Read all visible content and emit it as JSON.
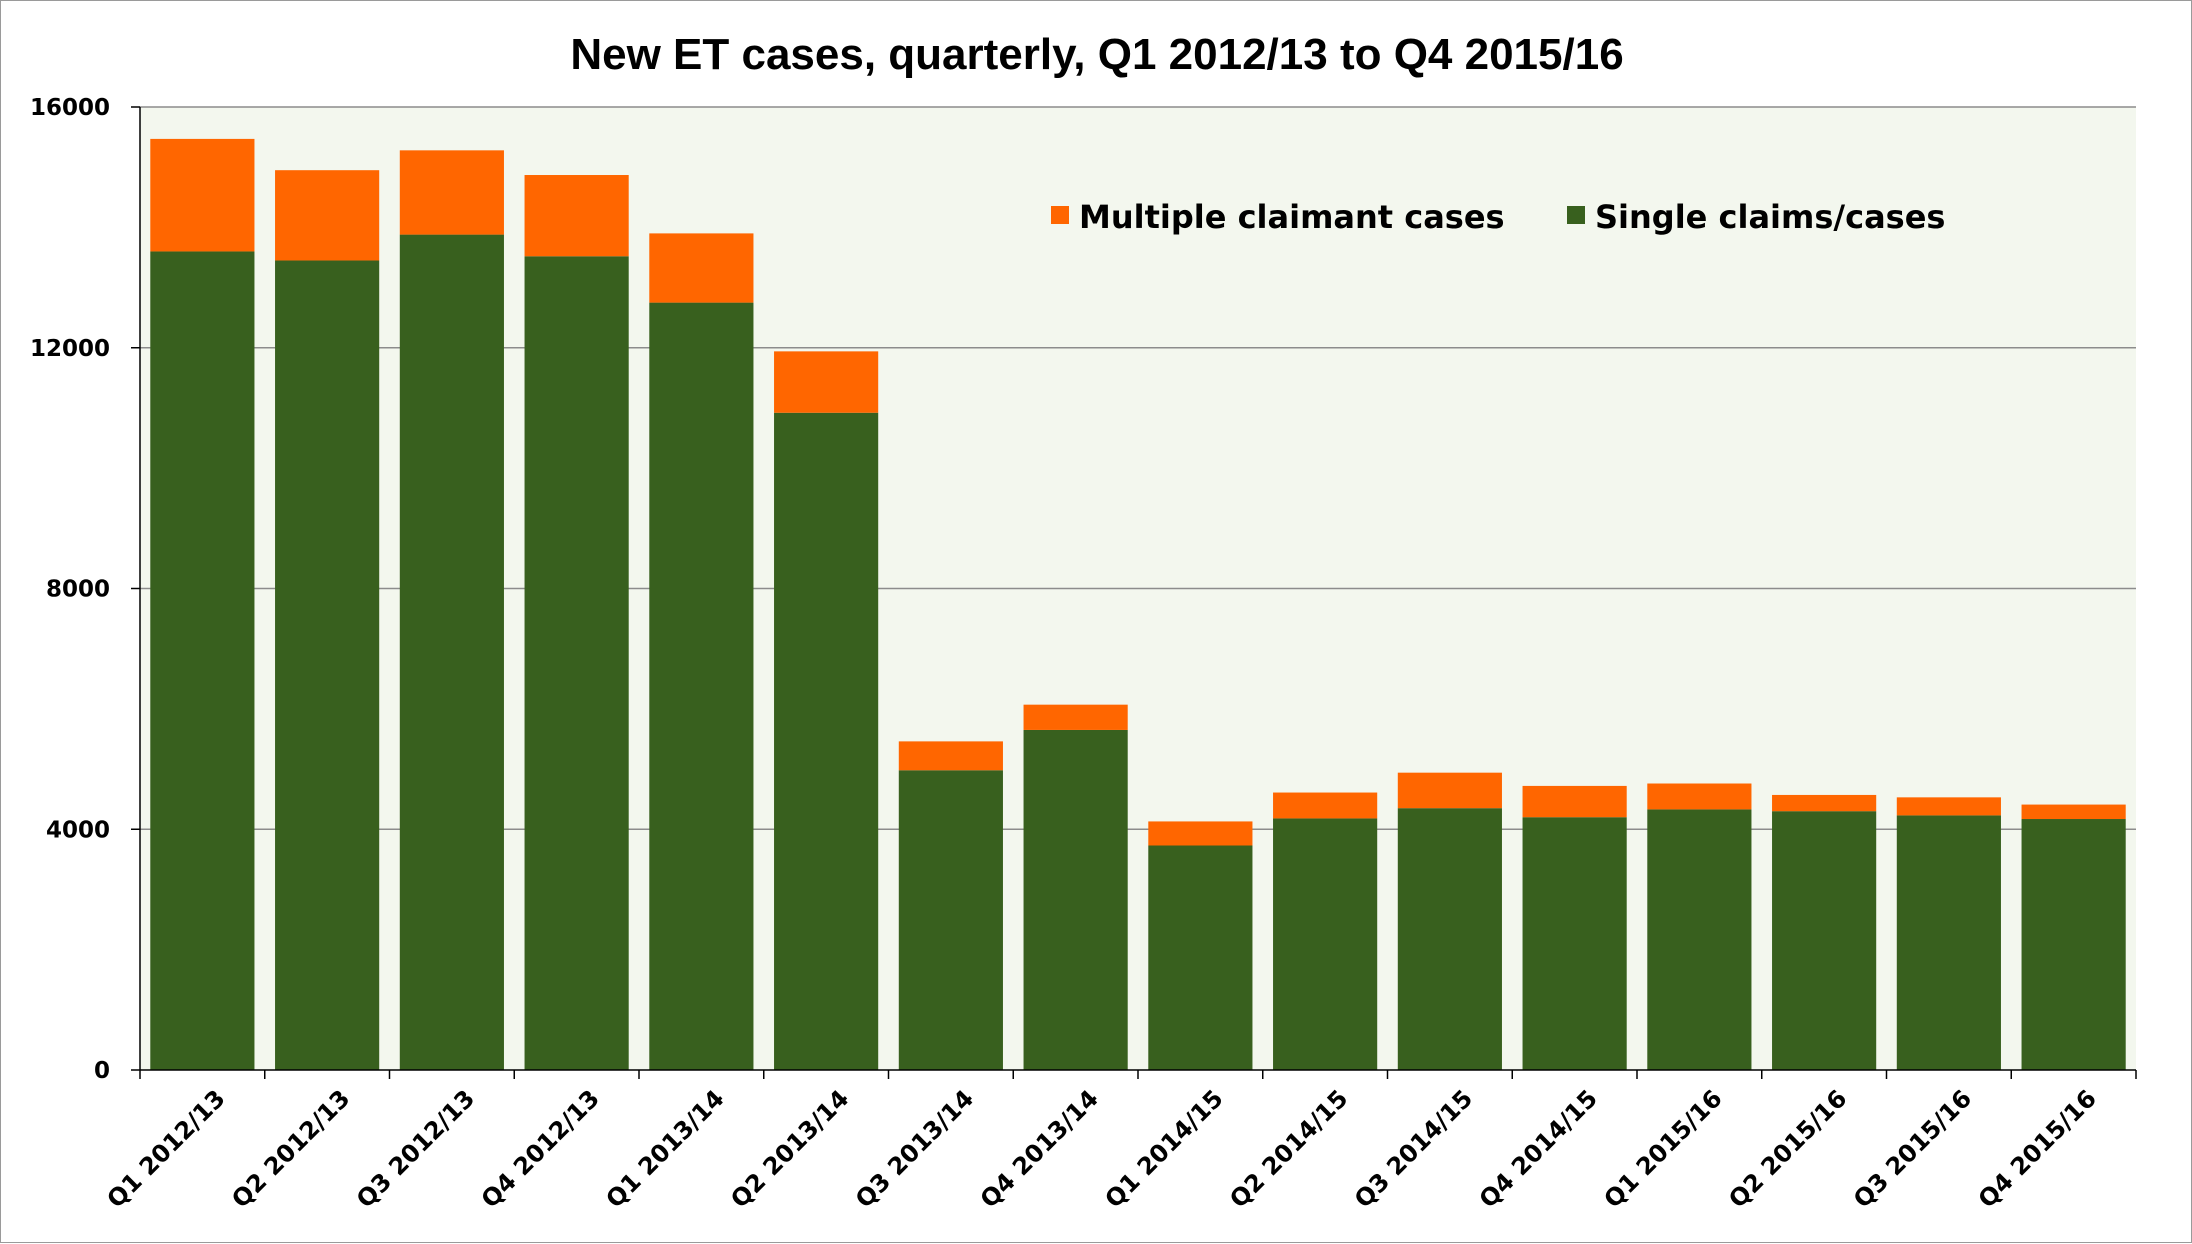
{
  "chart_data": {
    "type": "bar",
    "stacked": true,
    "title": "New ET cases, quarterly, Q1 2012/13 to Q4 2015/16",
    "xlabel": "",
    "ylabel": "",
    "ylim": [
      0,
      16000
    ],
    "yticks": [
      0,
      4000,
      8000,
      12000,
      16000
    ],
    "ytick_labels": [
      "0",
      "4000",
      "8000",
      "12000",
      "16000"
    ],
    "grid": true,
    "plot_background": "#f3f7ee",
    "legend_position": "top-right",
    "categories": [
      "Q1 2012/13",
      "Q2 2012/13",
      "Q3 2012/13",
      "Q4 2012/13",
      "Q1 2013/14",
      "Q2 2013/14",
      "Q3 2013/14",
      "Q4 2013/14",
      "Q1 2014/15",
      "Q2 2014/15",
      "Q3 2014/15",
      "Q4 2014/15",
      "Q1 2015/16",
      "Q2 2015/16",
      "Q3 2015/16",
      "Q4 2015/16"
    ],
    "series": [
      {
        "name": "Single claims/cases",
        "color": "#38601e",
        "values": [
          13600,
          13450,
          13880,
          13520,
          12750,
          10920,
          4980,
          5650,
          3730,
          4180,
          4350,
          4200,
          4330,
          4300,
          4230,
          4170
        ]
      },
      {
        "name": "Multiple claimant cases",
        "color": "#ff6600",
        "values": [
          1870,
          1500,
          1400,
          1350,
          1150,
          1020,
          480,
          420,
          400,
          430,
          590,
          520,
          430,
          270,
          300,
          240
        ]
      }
    ],
    "legend": [
      {
        "label": "Multiple claimant cases",
        "color": "#ff6600"
      },
      {
        "label": "Single claims/cases",
        "color": "#38601e"
      }
    ]
  }
}
